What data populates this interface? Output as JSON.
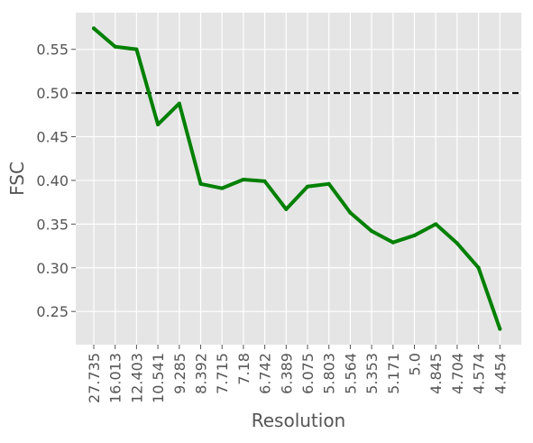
{
  "chart_data": {
    "type": "line",
    "title": "",
    "xlabel": "Resolution",
    "ylabel": "FSC",
    "categories": [
      "27.735",
      "16.013",
      "12.403",
      "10.541",
      "9.285",
      "8.392",
      "7.715",
      "7.18",
      "6.742",
      "6.389",
      "6.075",
      "5.803",
      "5.564",
      "5.353",
      "5.171",
      "5.0",
      "4.845",
      "4.704",
      "4.574",
      "4.454"
    ],
    "series": [
      {
        "values": [
          0.574,
          0.553,
          0.55,
          0.464,
          0.488,
          0.396,
          0.391,
          0.401,
          0.399,
          0.367,
          0.393,
          0.396,
          0.363,
          0.342,
          0.329,
          0.337,
          0.35,
          0.328,
          0.3,
          0.23
        ],
        "color": "#008000"
      }
    ],
    "yticks": [
      0.25,
      0.3,
      0.35,
      0.4,
      0.45,
      0.5,
      0.55
    ],
    "ytick_labels": [
      "0.25",
      "0.30",
      "0.35",
      "0.40",
      "0.45",
      "0.50",
      "0.55"
    ],
    "ylim": [
      0.212,
      0.592
    ],
    "threshold": {
      "value": 0.5,
      "color": "#000000",
      "style": "dashed"
    },
    "grid": true,
    "background": "#e5e5e5",
    "grid_color": "#ffffff"
  }
}
